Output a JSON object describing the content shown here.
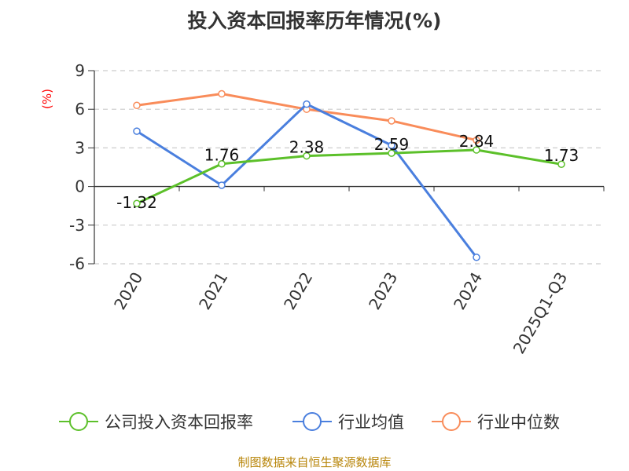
{
  "chart_data": {
    "type": "line",
    "title": "投入资本回报率历年情况(%)",
    "ylabel": "(%)",
    "ylim": [
      -6,
      9
    ],
    "yticks": [
      9,
      6,
      3,
      0,
      -3,
      -6
    ],
    "grid": true,
    "legend_position": "bottom",
    "categories": [
      "2020",
      "2021",
      "2022",
      "2023",
      "2024",
      "2025Q1-Q3"
    ],
    "series": [
      {
        "name": "公司投入资本回报率",
        "color": "#5cc02a",
        "values": [
          -1.32,
          1.76,
          2.38,
          2.59,
          2.84,
          1.73
        ],
        "labels": [
          "-1.32",
          "1.76",
          "2.38",
          "2.59",
          "2.84",
          "1.73"
        ]
      },
      {
        "name": "行业均值",
        "color": "#4a7fde",
        "values": [
          4.3,
          0.1,
          6.4,
          3.2,
          -5.5,
          null
        ]
      },
      {
        "name": "行业中位数",
        "color": "#f98c5a",
        "values": [
          6.3,
          7.2,
          6.0,
          5.1,
          3.6,
          null
        ]
      }
    ],
    "ylabel_color": "#ff0000"
  },
  "source": "制图数据来自恒生聚源数据库"
}
